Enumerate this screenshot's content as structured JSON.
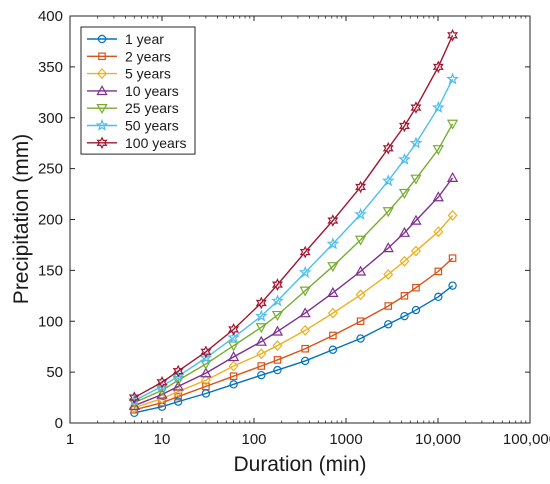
{
  "chart_data": {
    "type": "line",
    "xlabel": "Duration (min)",
    "ylabel": "Precipitation (mm)",
    "x_scale": "log",
    "xlim": [
      1,
      100000
    ],
    "ylim": [
      0,
      400
    ],
    "x_ticks": [
      1,
      10,
      100,
      1000,
      10000,
      100000
    ],
    "x_tick_labels": [
      "1",
      "10",
      "100",
      "1000",
      "10,000",
      "100,000"
    ],
    "y_ticks": [
      0,
      50,
      100,
      150,
      200,
      250,
      300,
      350,
      400
    ],
    "y_tick_labels": [
      "0",
      "50",
      "100",
      "150",
      "200",
      "250",
      "300",
      "350",
      "400"
    ],
    "grid": false,
    "legend_position": "top-left",
    "x": [
      5,
      10,
      15,
      30,
      60,
      120,
      180,
      360,
      720,
      1440,
      2880,
      4320,
      5760,
      10080,
      14400
    ],
    "series": [
      {
        "name": "1 year",
        "color": "#0072BD",
        "marker": "circle",
        "values": [
          10,
          16,
          21,
          29,
          38,
          47,
          52,
          61,
          72,
          83,
          97,
          105,
          111,
          124,
          135
        ]
      },
      {
        "name": "2 years",
        "color": "#D95319",
        "marker": "square",
        "values": [
          13,
          20,
          26,
          36,
          46,
          56,
          62,
          73,
          86,
          100,
          115,
          125,
          133,
          149,
          162
        ]
      },
      {
        "name": "5 years",
        "color": "#EDB120",
        "marker": "diamond",
        "values": [
          15,
          24,
          31,
          42,
          56,
          68,
          76,
          91,
          108,
          126,
          146,
          159,
          169,
          188,
          204
        ]
      },
      {
        "name": "10 years",
        "color": "#7E2F8E",
        "marker": "triangle-up",
        "values": [
          17,
          28,
          36,
          49,
          65,
          80,
          90,
          108,
          128,
          149,
          172,
          187,
          199,
          222,
          241
        ]
      },
      {
        "name": "25 years",
        "color": "#77AC30",
        "marker": "triangle-down",
        "values": [
          20,
          32,
          42,
          58,
          76,
          94,
          106,
          130,
          154,
          180,
          208,
          226,
          240,
          269,
          294
        ]
      },
      {
        "name": "50 years",
        "color": "#4DBEEE",
        "marker": "star",
        "values": [
          22,
          36,
          46,
          64,
          84,
          105,
          120,
          148,
          176,
          205,
          238,
          259,
          275,
          310,
          338
        ]
      },
      {
        "name": "100 years",
        "color": "#A2142F",
        "marker": "hexagram",
        "values": [
          25,
          40,
          51,
          70,
          92,
          118,
          136,
          168,
          199,
          232,
          270,
          292,
          310,
          350,
          381
        ]
      }
    ]
  }
}
